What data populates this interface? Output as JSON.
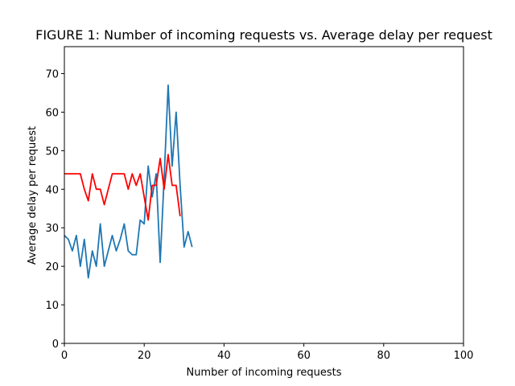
{
  "chart_data": {
    "type": "line",
    "title": "FIGURE 1: Number of incoming requests vs. Average delay per request",
    "xlabel": "Number of incoming requests",
    "ylabel": "Average delay per request",
    "xlim": [
      0,
      100
    ],
    "ylim": [
      0,
      77
    ],
    "xticks": [
      0,
      20,
      40,
      60,
      80,
      100
    ],
    "yticks": [
      0,
      10,
      20,
      30,
      40,
      50,
      60,
      70
    ],
    "grid": false,
    "series": [
      {
        "color": "#1f77b4",
        "x": [
          0,
          1,
          2,
          3,
          4,
          5,
          6,
          7,
          8,
          9,
          10,
          11,
          12,
          13,
          14,
          15,
          16,
          17,
          18,
          19,
          20,
          21,
          22,
          23,
          24,
          25,
          26,
          27,
          28,
          29,
          30,
          31,
          32
        ],
        "y": [
          28,
          27,
          24,
          28,
          20,
          27,
          17,
          24,
          20,
          31,
          20,
          24,
          28,
          24,
          27,
          31,
          24,
          23,
          23,
          32,
          31,
          46,
          38,
          44,
          21,
          43,
          67,
          46,
          60,
          41,
          25,
          29,
          25
        ]
      },
      {
        "color": "#ff0000",
        "x": [
          0,
          1,
          2,
          3,
          4,
          5,
          6,
          7,
          8,
          9,
          10,
          11,
          12,
          13,
          14,
          15,
          16,
          17,
          18,
          19,
          20,
          21,
          22,
          23,
          24,
          25,
          26,
          27,
          28,
          29
        ],
        "y": [
          44,
          44,
          44,
          44,
          44,
          40,
          37,
          44,
          40,
          40,
          36,
          40,
          44,
          44,
          44,
          44,
          40,
          44,
          41,
          44,
          38,
          32,
          41,
          41,
          48,
          40,
          49,
          41,
          41,
          33
        ]
      }
    ]
  }
}
